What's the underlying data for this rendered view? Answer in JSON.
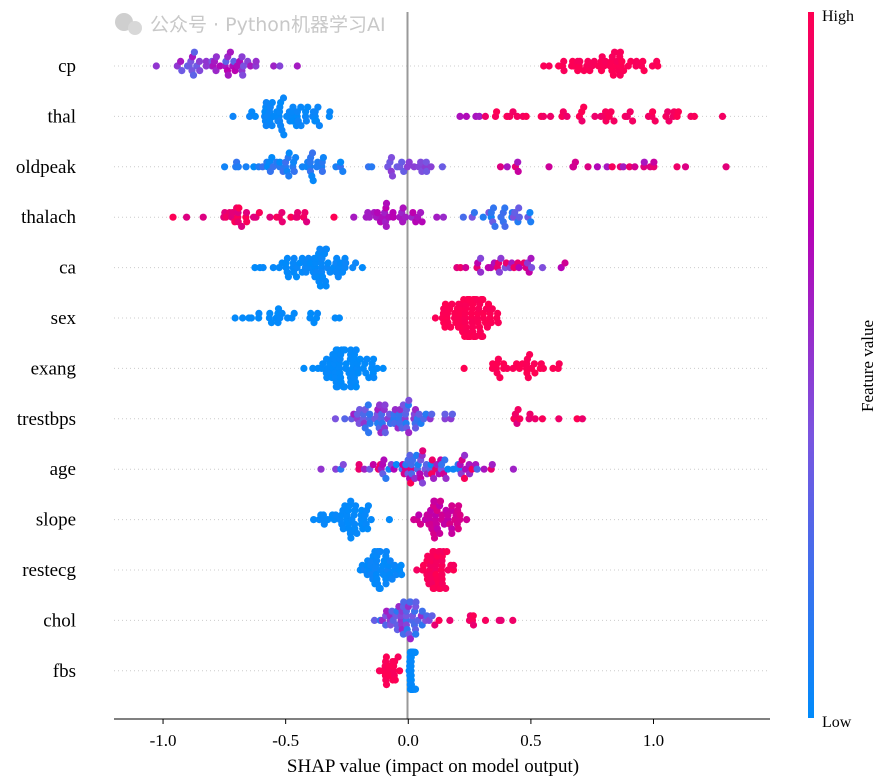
{
  "chart_data": {
    "type": "scatter",
    "subtype": "shap-beeswarm",
    "xlabel": "SHAP value (impact on model output)",
    "xlim": [
      -1.2,
      1.475
    ],
    "xticks": [
      -1.0,
      -0.5,
      0.0,
      0.5,
      1.0
    ],
    "xtick_labels": [
      "-1.0",
      "-0.5",
      "0.0",
      "0.5",
      "1.0"
    ],
    "colorbar": {
      "label": "Feature value",
      "high_label": "High",
      "low_label": "Low",
      "low_color": "#008bfb",
      "high_color": "#ff0052"
    },
    "features": [
      {
        "name": "cp",
        "clusters": [
          {
            "shap": [
              -1.1,
              -0.45
            ],
            "n": 45,
            "fv": [
              0.3,
              0.75
            ]
          },
          {
            "shap": [
              0.53,
              1.05
            ],
            "n": 50,
            "fv": [
              0.97,
              1.0
            ]
          }
        ]
      },
      {
        "name": "thal",
        "clusters": [
          {
            "shap": [
              -0.72,
              -0.27
            ],
            "n": 55,
            "fv": [
              0.0,
              0.05
            ]
          },
          {
            "shap": [
              0.16,
              0.3
            ],
            "n": 4,
            "fv": [
              0.6,
              0.7
            ]
          },
          {
            "shap": [
              0.3,
              1.33
            ],
            "n": 45,
            "fv": [
              0.92,
              1.0
            ]
          }
        ]
      },
      {
        "name": "oldpeak",
        "clusters": [
          {
            "shap": [
              -0.8,
              -0.12
            ],
            "n": 50,
            "fv": [
              0.0,
              0.2
            ]
          },
          {
            "shap": [
              -0.15,
              0.15
            ],
            "n": 20,
            "fv": [
              0.3,
              0.5
            ]
          },
          {
            "shap": [
              0.36,
              1.35
            ],
            "n": 25,
            "fv": [
              0.6,
              1.0
            ]
          }
        ]
      },
      {
        "name": "thalach",
        "clusters": [
          {
            "shap": [
              -1.0,
              -0.3
            ],
            "n": 35,
            "fv": [
              0.85,
              1.0
            ]
          },
          {
            "shap": [
              -0.28,
              0.15
            ],
            "n": 30,
            "fv": [
              0.55,
              0.72
            ]
          },
          {
            "shap": [
              0.22,
              0.58
            ],
            "n": 25,
            "fv": [
              0.05,
              0.45
            ]
          }
        ]
      },
      {
        "name": "ca",
        "clusters": [
          {
            "shap": [
              -0.63,
              -0.13
            ],
            "n": 65,
            "fv": [
              0.0,
              0.04
            ]
          },
          {
            "shap": [
              0.15,
              0.7
            ],
            "n": 30,
            "fv": [
              0.4,
              1.0
            ]
          }
        ]
      },
      {
        "name": "sex",
        "clusters": [
          {
            "shap": [
              -0.74,
              -0.28
            ],
            "n": 25,
            "fv": [
              0.0,
              0.02
            ]
          },
          {
            "shap": [
              0.11,
              0.37
            ],
            "n": 90,
            "fv": [
              0.98,
              1.0
            ]
          }
        ]
      },
      {
        "name": "exang",
        "clusters": [
          {
            "shap": [
              -0.43,
              -0.1
            ],
            "n": 75,
            "fv": [
              0.0,
              0.02
            ]
          },
          {
            "shap": [
              0.2,
              0.68
            ],
            "n": 30,
            "fv": [
              0.98,
              1.0
            ]
          }
        ]
      },
      {
        "name": "trestbps",
        "clusters": [
          {
            "shap": [
              -0.33,
              0.2
            ],
            "n": 70,
            "fv": [
              0.1,
              0.6
            ]
          },
          {
            "shap": [
              0.28,
              0.8
            ],
            "n": 12,
            "fv": [
              0.85,
              1.0
            ]
          }
        ]
      },
      {
        "name": "age",
        "clusters": [
          {
            "shap": [
              -0.36,
              0.44
            ],
            "n": 80,
            "fv": [
              0.0,
              1.0
            ]
          }
        ]
      },
      {
        "name": "slope",
        "clusters": [
          {
            "shap": [
              -0.4,
              -0.05
            ],
            "n": 45,
            "fv": [
              0.0,
              0.03
            ]
          },
          {
            "shap": [
              0.02,
              0.25
            ],
            "n": 45,
            "fv": [
              0.72,
              0.85
            ]
          }
        ]
      },
      {
        "name": "restecg",
        "clusters": [
          {
            "shap": [
              -0.2,
              -0.02
            ],
            "n": 45,
            "fv": [
              0.0,
              0.05
            ]
          },
          {
            "shap": [
              0.03,
              0.2
            ],
            "n": 45,
            "fv": [
              0.95,
              1.0
            ]
          }
        ]
      },
      {
        "name": "chol",
        "clusters": [
          {
            "shap": [
              -0.15,
              0.1
            ],
            "n": 50,
            "fv": [
              0.1,
              0.6
            ]
          },
          {
            "shap": [
              0.1,
              0.45
            ],
            "n": 12,
            "fv": [
              0.9,
              1.0
            ]
          }
        ]
      },
      {
        "name": "fbs",
        "clusters": [
          {
            "shap": [
              -0.15,
              -0.02
            ],
            "n": 20,
            "fv": [
              0.97,
              1.0
            ]
          },
          {
            "shap": [
              0.0,
              0.03
            ],
            "n": 70,
            "fv": [
              0.0,
              0.02
            ]
          }
        ]
      }
    ]
  },
  "watermark": "公众号 · Python机器学习AI"
}
